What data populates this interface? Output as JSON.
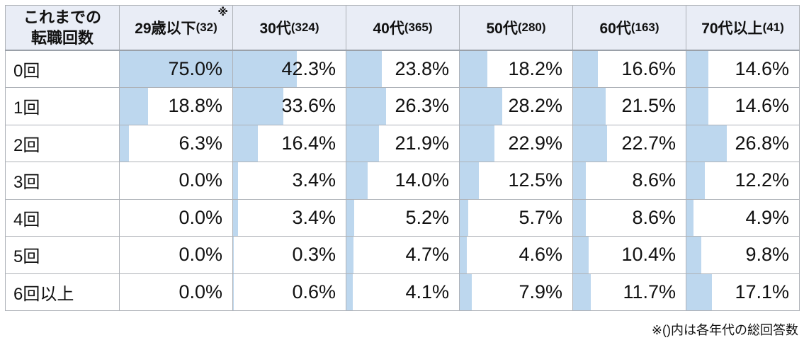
{
  "table": {
    "corner_lines": [
      "これまでの",
      "転職回数"
    ],
    "columns": [
      {
        "main": "29歳以下",
        "paren": "(32)",
        "mark": "※"
      },
      {
        "main": "30代",
        "paren": "(324)"
      },
      {
        "main": "40代",
        "paren": "(365)"
      },
      {
        "main": "50代",
        "paren": "(280)"
      },
      {
        "main": "60代",
        "paren": "(163)"
      },
      {
        "main": "70代以上",
        "paren": "(41)"
      }
    ],
    "rows": [
      {
        "label": "0回",
        "values": [
          75.0,
          42.3,
          23.8,
          18.2,
          16.6,
          14.6
        ]
      },
      {
        "label": "1回",
        "values": [
          18.8,
          33.6,
          26.3,
          28.2,
          21.5,
          14.6
        ]
      },
      {
        "label": "2回",
        "values": [
          6.3,
          16.4,
          21.9,
          22.9,
          22.7,
          26.8
        ]
      },
      {
        "label": "3回",
        "values": [
          0.0,
          3.4,
          14.0,
          12.5,
          8.6,
          12.2
        ]
      },
      {
        "label": "4回",
        "values": [
          0.0,
          3.4,
          5.2,
          5.7,
          8.6,
          4.9
        ]
      },
      {
        "label": "5回",
        "values": [
          0.0,
          0.3,
          4.7,
          4.6,
          10.4,
          9.8
        ]
      },
      {
        "label": "6回以上",
        "values": [
          0.0,
          0.6,
          4.1,
          7.9,
          11.7,
          17.1
        ]
      }
    ]
  },
  "footer": {
    "note": "※()内は各年代の総回答数"
  },
  "colors": {
    "bar": "#bdd7ee",
    "header_bg": "#e9edf6",
    "border": "#aeb2b8",
    "text": "#111111"
  },
  "chart_data": {
    "type": "table",
    "title": "これまでの転職回数",
    "columns": [
      "29歳以下(32)",
      "30代(324)",
      "40代(365)",
      "50代(280)",
      "60代(163)",
      "70代以上(41)"
    ],
    "column_counts": [
      32,
      324,
      365,
      280,
      163,
      41
    ],
    "rows": [
      "0回",
      "1回",
      "2回",
      "3回",
      "4回",
      "5回",
      "6回以上"
    ],
    "values_percent": [
      [
        75.0,
        42.3,
        23.8,
        18.2,
        16.6,
        14.6
      ],
      [
        18.8,
        33.6,
        26.3,
        28.2,
        21.5,
        14.6
      ],
      [
        6.3,
        16.4,
        21.9,
        22.9,
        22.7,
        26.8
      ],
      [
        0.0,
        3.4,
        14.0,
        12.5,
        8.6,
        12.2
      ],
      [
        0.0,
        3.4,
        5.2,
        5.7,
        8.6,
        4.9
      ],
      [
        0.0,
        0.3,
        4.7,
        4.6,
        10.4,
        9.8
      ],
      [
        0.0,
        0.6,
        4.1,
        7.9,
        11.7,
        17.1
      ]
    ],
    "bar_scale_max_percent": 75.0,
    "bars": "horizontal data bars in cells, proportional to value, max value fills cell",
    "footnote": "※()内は各年代の総回答数"
  }
}
